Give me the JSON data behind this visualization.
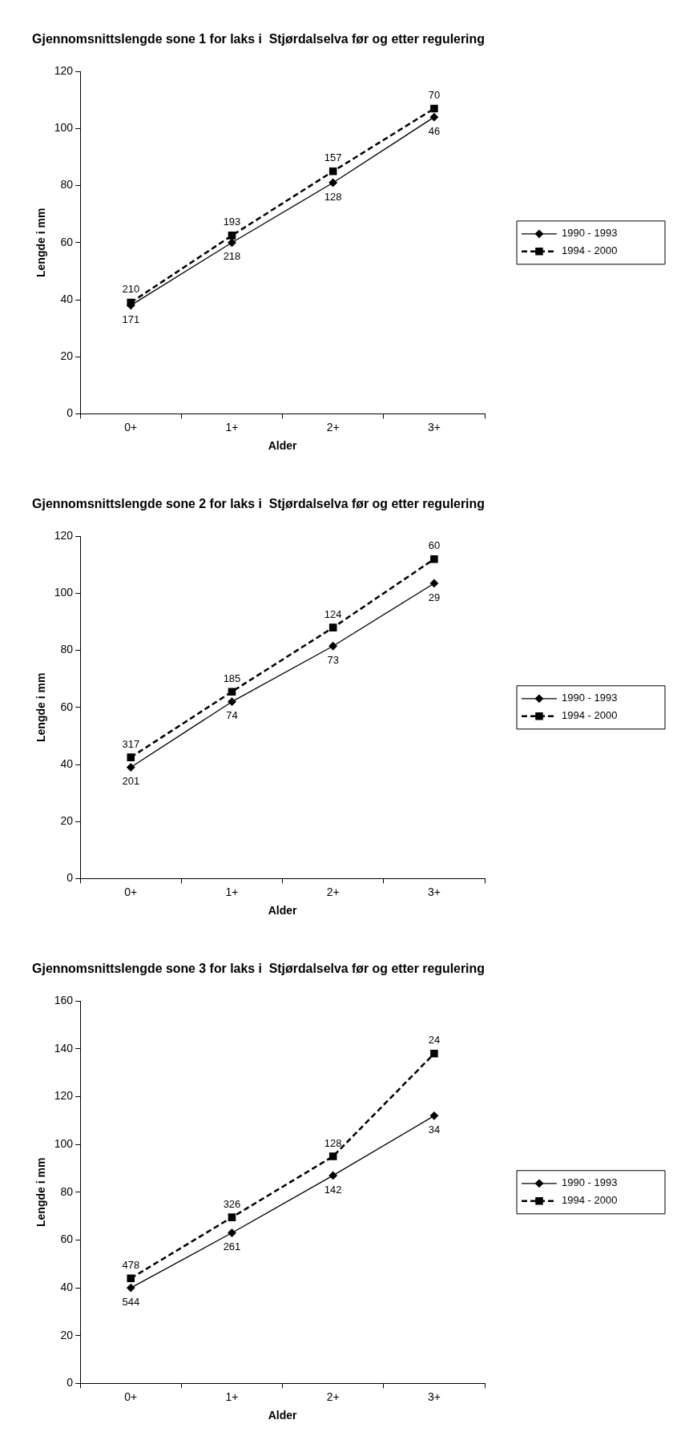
{
  "chart_data": [
    {
      "type": "line",
      "title": "Gjennomsnittslengde sone 1 for laks i  Stjørdalselva før og etter regulering",
      "xlabel": "Alder",
      "ylabel": "Lengde i mm",
      "categories": [
        "0+",
        "1+",
        "2+",
        "3+"
      ],
      "ylim": [
        0,
        120
      ],
      "yticks": [
        0,
        20,
        40,
        60,
        80,
        100,
        120
      ],
      "grid": false,
      "legend": "right",
      "series": [
        {
          "name": "1990 - 1993",
          "color": "#000000",
          "marker": "diamond",
          "line_style": "solid",
          "values": [
            38,
            60,
            81,
            104
          ]
        },
        {
          "name": "1994 - 2000",
          "color": "#000000",
          "marker": "square",
          "line_style": "dashed",
          "values": [
            39,
            62.5,
            85,
            107
          ]
        }
      ],
      "annotations": [
        {
          "text": "210",
          "x": "0+",
          "y": 39
        },
        {
          "text": "171",
          "x": "0+",
          "y": 38
        },
        {
          "text": "193",
          "x": "1+",
          "y": 62.5
        },
        {
          "text": "218",
          "x": "1+",
          "y": 60
        },
        {
          "text": "157",
          "x": "2+",
          "y": 85
        },
        {
          "text": "128",
          "x": "2+",
          "y": 81
        },
        {
          "text": "70",
          "x": "3+",
          "y": 107
        },
        {
          "text": "46",
          "x": "3+",
          "y": 104
        }
      ]
    },
    {
      "type": "line",
      "title": "Gjennomsnittslengde sone 2 for laks i  Stjørdalselva før og etter regulering",
      "xlabel": "Alder",
      "ylabel": "Lengde i mm",
      "categories": [
        "0+",
        "1+",
        "2+",
        "3+"
      ],
      "ylim": [
        0,
        120
      ],
      "yticks": [
        0,
        20,
        40,
        60,
        80,
        100,
        120
      ],
      "grid": false,
      "legend": "right",
      "series": [
        {
          "name": "1990 - 1993",
          "color": "#000000",
          "marker": "diamond",
          "line_style": "solid",
          "values": [
            39,
            62,
            81.5,
            103.5
          ]
        },
        {
          "name": "1994 - 2000",
          "color": "#000000",
          "marker": "square",
          "line_style": "dashed",
          "values": [
            42.5,
            65.5,
            88,
            112
          ]
        }
      ],
      "annotations": [
        {
          "text": "317",
          "x": "0+",
          "y": 42.5
        },
        {
          "text": "201",
          "x": "0+",
          "y": 39
        },
        {
          "text": "185",
          "x": "1+",
          "y": 65.5
        },
        {
          "text": "74",
          "x": "1+",
          "y": 62
        },
        {
          "text": "124",
          "x": "2+",
          "y": 88
        },
        {
          "text": "73",
          "x": "2+",
          "y": 81.5
        },
        {
          "text": "60",
          "x": "3+",
          "y": 112
        },
        {
          "text": "29",
          "x": "3+",
          "y": 103.5
        }
      ]
    },
    {
      "type": "line",
      "title": "Gjennomsnittslengde sone 3 for laks i  Stjørdalselva før og etter regulering",
      "xlabel": "Alder",
      "ylabel": "Lengde i mm",
      "categories": [
        "0+",
        "1+",
        "2+",
        "3+"
      ],
      "ylim": [
        0,
        160
      ],
      "yticks": [
        0,
        20,
        40,
        60,
        80,
        100,
        120,
        140,
        160
      ],
      "grid": false,
      "legend": "right",
      "series": [
        {
          "name": "1990 - 1993",
          "color": "#000000",
          "marker": "diamond",
          "line_style": "solid",
          "values": [
            40,
            63,
            87,
            112
          ]
        },
        {
          "name": "1994 - 2000",
          "color": "#000000",
          "marker": "square",
          "line_style": "dashed",
          "values": [
            44,
            69.5,
            95,
            138
          ]
        }
      ],
      "annotations": [
        {
          "text": "478",
          "x": "0+",
          "y": 44
        },
        {
          "text": "544",
          "x": "0+",
          "y": 40
        },
        {
          "text": "326",
          "x": "1+",
          "y": 69.5
        },
        {
          "text": "261",
          "x": "1+",
          "y": 63
        },
        {
          "text": "128",
          "x": "2+",
          "y": 95
        },
        {
          "text": "142",
          "x": "2+",
          "y": 87
        },
        {
          "text": "24",
          "x": "3+",
          "y": 138
        },
        {
          "text": "34",
          "x": "3+",
          "y": 112
        }
      ]
    }
  ]
}
